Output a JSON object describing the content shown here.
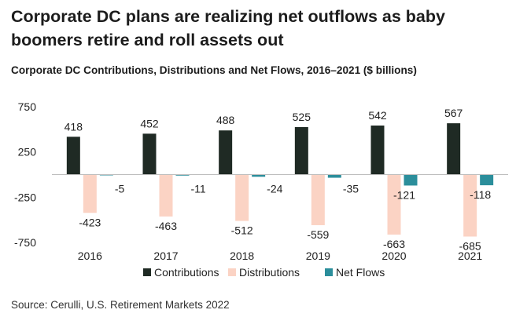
{
  "headline": "Corporate DC plans are realizing net outflows as baby boomers retire and roll assets out",
  "source": "Source: Cerulli, U.S. Retirement Markets 2022",
  "chart_data": {
    "type": "bar",
    "title": "Corporate DC Contributions, Distributions and Net Flows, 2016–2021 ($ billions)",
    "categories": [
      "2016",
      "2017",
      "2018",
      "2019",
      "2020",
      "2021"
    ],
    "series": [
      {
        "name": "Contributions",
        "color": "#1f2a24",
        "values": [
          418,
          452,
          488,
          525,
          542,
          567
        ]
      },
      {
        "name": "Distributions",
        "color": "#fbd3c4",
        "values": [
          -423,
          -463,
          -512,
          -559,
          -663,
          -685
        ]
      },
      {
        "name": "Net Flows",
        "color": "#2b8e9b",
        "values": [
          -5,
          -11,
          -24,
          -35,
          -121,
          -118
        ]
      }
    ],
    "yticks": [
      750,
      250,
      -250,
      -750
    ],
    "ylim": [
      -750,
      750
    ],
    "xlabel": "",
    "ylabel": "",
    "grid": false,
    "legend": "bottom"
  }
}
